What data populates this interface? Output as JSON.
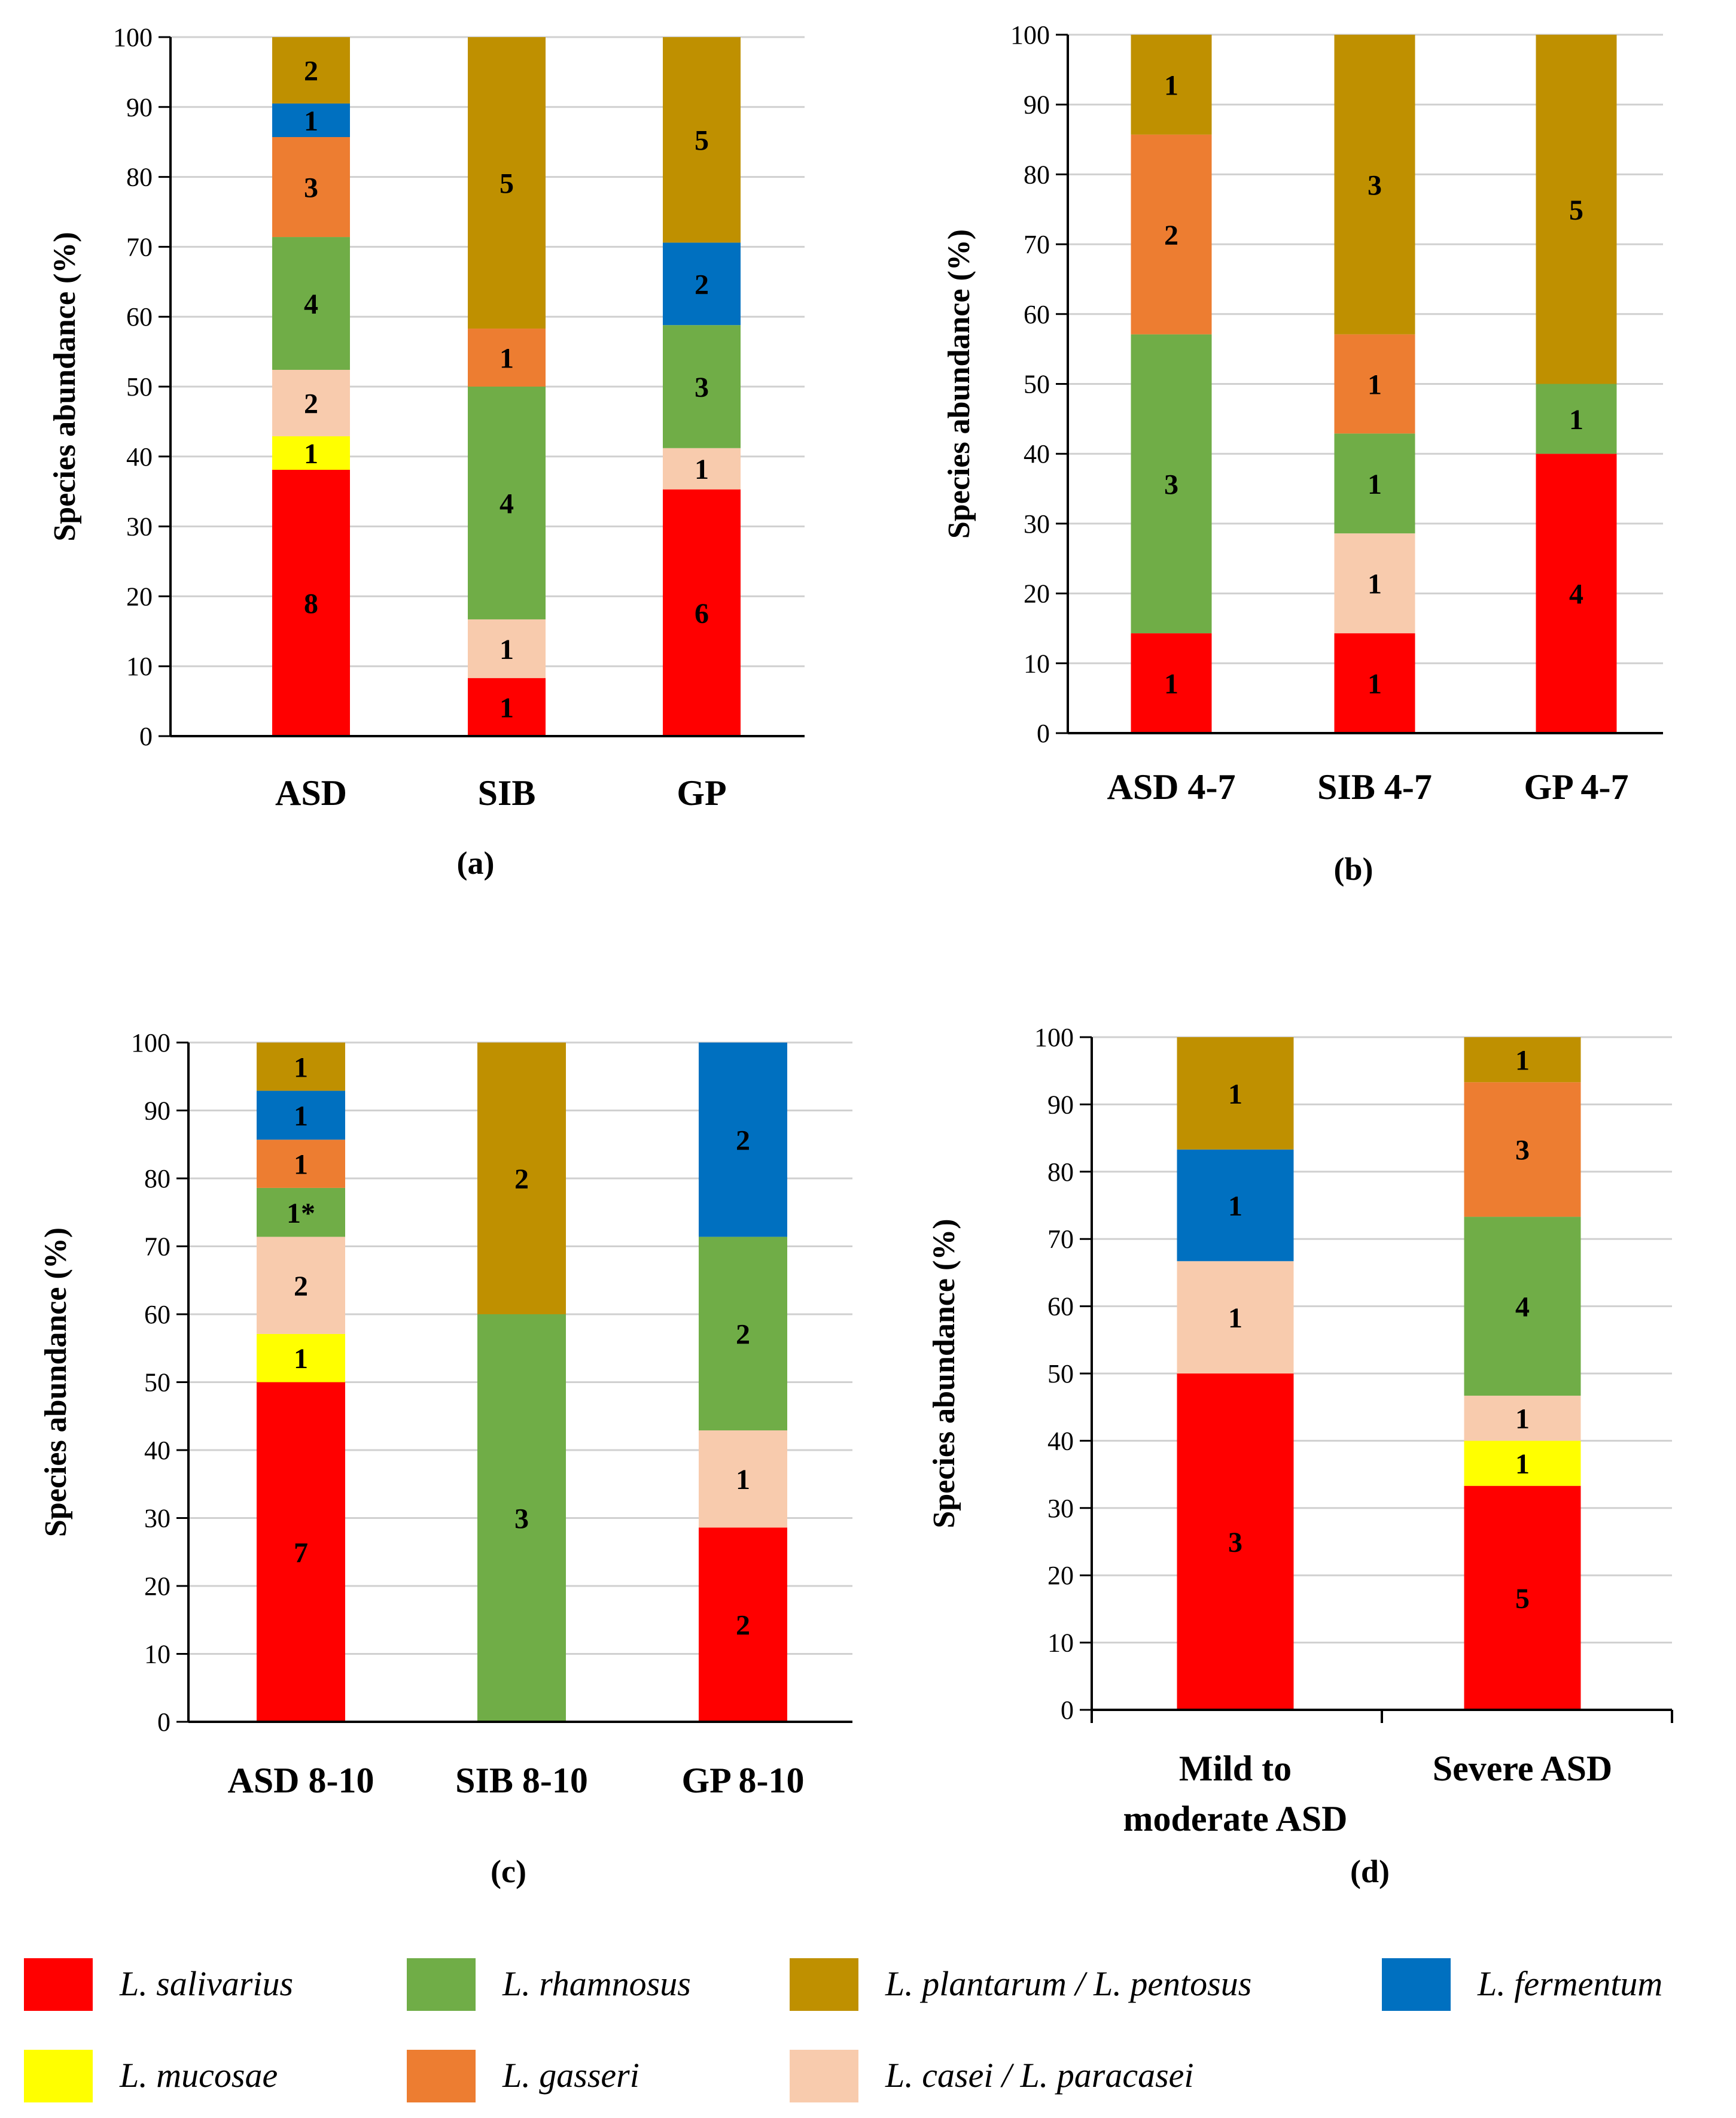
{
  "colors": {
    "L. salivarius": "#ff0000",
    "L. mucosae": "#ffff00",
    "L. casei / L. paracasei": "#f8cbad",
    "L. rhamnosus": "#70ad47",
    "L. gasseri": "#ed7d31",
    "L. fermentum": "#0070c0",
    "L. plantarum / L. pentosus": "#bf9000"
  },
  "legend": [
    "L. salivarius",
    "L. rhamnosus",
    "L. plantarum / L. pentosus",
    "L. fermentum",
    "L. mucosae",
    "L. gasseri",
    "L. casei / L. paracasei"
  ],
  "chart_data": [
    {
      "type": "bar",
      "stacked": true,
      "panel_label": "(a)",
      "ylabel": "Species abundance (%)",
      "ylim": [
        0,
        100
      ],
      "yticks": [
        0,
        10,
        20,
        30,
        40,
        50,
        60,
        70,
        80,
        90,
        100
      ],
      "categories": [
        "ASD",
        "SIB",
        "GP"
      ],
      "bars": [
        {
          "category": "ASD",
          "segments": [
            {
              "species": "L. salivarius",
              "start": 0,
              "end": 38.1,
              "label": "8"
            },
            {
              "species": "L. mucosae",
              "start": 38.1,
              "end": 42.9,
              "label": "1"
            },
            {
              "species": "L. casei / L. paracasei",
              "start": 42.9,
              "end": 52.4,
              "label": "2"
            },
            {
              "species": "L. rhamnosus",
              "start": 52.4,
              "end": 71.4,
              "label": "4"
            },
            {
              "species": "L. gasseri",
              "start": 71.4,
              "end": 85.7,
              "label": "3"
            },
            {
              "species": "L. fermentum",
              "start": 85.7,
              "end": 90.5,
              "label": "1"
            },
            {
              "species": "L. plantarum / L. pentosus",
              "start": 90.5,
              "end": 100,
              "label": "2"
            }
          ]
        },
        {
          "category": "SIB",
          "segments": [
            {
              "species": "L. salivarius",
              "start": 0,
              "end": 8.3,
              "label": "1"
            },
            {
              "species": "L. casei / L. paracasei",
              "start": 8.3,
              "end": 16.7,
              "label": "1"
            },
            {
              "species": "L. rhamnosus",
              "start": 16.7,
              "end": 50,
              "label": "4"
            },
            {
              "species": "L. gasseri",
              "start": 50,
              "end": 58.3,
              "label": "1"
            },
            {
              "species": "L. plantarum / L. pentosus",
              "start": 58.3,
              "end": 100,
              "label": "5"
            }
          ]
        },
        {
          "category": "GP",
          "segments": [
            {
              "species": "L. salivarius",
              "start": 0,
              "end": 35.3,
              "label": "6"
            },
            {
              "species": "L. casei / L. paracasei",
              "start": 35.3,
              "end": 41.2,
              "label": "1"
            },
            {
              "species": "L. rhamnosus",
              "start": 41.2,
              "end": 58.8,
              "label": "3"
            },
            {
              "species": "L. fermentum",
              "start": 58.8,
              "end": 70.6,
              "label": "2"
            },
            {
              "species": "L. plantarum / L. pentosus",
              "start": 70.6,
              "end": 100,
              "label": "5"
            }
          ]
        }
      ]
    },
    {
      "type": "bar",
      "stacked": true,
      "panel_label": "(b)",
      "ylabel": "Species abundance (%)",
      "ylim": [
        0,
        100
      ],
      "yticks": [
        0,
        10,
        20,
        30,
        40,
        50,
        60,
        70,
        80,
        90,
        100
      ],
      "categories": [
        "ASD 4-7",
        "SIB 4-7",
        "GP 4-7"
      ],
      "bars": [
        {
          "category": "ASD 4-7",
          "segments": [
            {
              "species": "L. salivarius",
              "start": 0,
              "end": 14.3,
              "label": "1"
            },
            {
              "species": "L. rhamnosus",
              "start": 14.3,
              "end": 57.1,
              "label": "3"
            },
            {
              "species": "L. gasseri",
              "start": 57.1,
              "end": 85.7,
              "label": "2"
            },
            {
              "species": "L. plantarum / L. pentosus",
              "start": 85.7,
              "end": 100,
              "label": "1"
            }
          ]
        },
        {
          "category": "SIB 4-7",
          "segments": [
            {
              "species": "L. salivarius",
              "start": 0,
              "end": 14.3,
              "label": "1"
            },
            {
              "species": "L. casei / L. paracasei",
              "start": 14.3,
              "end": 28.6,
              "label": "1"
            },
            {
              "species": "L. rhamnosus",
              "start": 28.6,
              "end": 42.9,
              "label": "1"
            },
            {
              "species": "L. gasseri",
              "start": 42.9,
              "end": 57.1,
              "label": "1"
            },
            {
              "species": "L. plantarum / L. pentosus",
              "start": 57.1,
              "end": 100,
              "label": "3"
            }
          ]
        },
        {
          "category": "GP 4-7",
          "segments": [
            {
              "species": "L. salivarius",
              "start": 0,
              "end": 40,
              "label": "4"
            },
            {
              "species": "L. rhamnosus",
              "start": 40,
              "end": 50,
              "label": "1"
            },
            {
              "species": "L. plantarum / L. pentosus",
              "start": 50,
              "end": 100,
              "label": "5"
            }
          ]
        }
      ]
    },
    {
      "type": "bar",
      "stacked": true,
      "panel_label": "(c)",
      "ylabel": "Species abundance (%)",
      "ylim": [
        0,
        100
      ],
      "yticks": [
        0,
        10,
        20,
        30,
        40,
        50,
        60,
        70,
        80,
        90,
        100
      ],
      "categories": [
        "ASD 8-10",
        "SIB 8-10",
        "GP 8-10"
      ],
      "bars": [
        {
          "category": "ASD 8-10",
          "segments": [
            {
              "species": "L. salivarius",
              "start": 0,
              "end": 50,
              "label": "7"
            },
            {
              "species": "L. mucosae",
              "start": 50,
              "end": 57.1,
              "label": "1"
            },
            {
              "species": "L. casei / L. paracasei",
              "start": 57.1,
              "end": 71.4,
              "label": "2"
            },
            {
              "species": "L. rhamnosus",
              "start": 71.4,
              "end": 78.6,
              "label": "1*"
            },
            {
              "species": "L. gasseri",
              "start": 78.6,
              "end": 85.7,
              "label": "1"
            },
            {
              "species": "L. fermentum",
              "start": 85.7,
              "end": 92.9,
              "label": "1"
            },
            {
              "species": "L. plantarum / L. pentosus",
              "start": 92.9,
              "end": 100,
              "label": "1"
            }
          ]
        },
        {
          "category": "SIB 8-10",
          "segments": [
            {
              "species": "L. rhamnosus",
              "start": 0,
              "end": 60,
              "label": "3"
            },
            {
              "species": "L. plantarum / L. pentosus",
              "start": 60,
              "end": 100,
              "label": "2"
            }
          ]
        },
        {
          "category": "GP 8-10",
          "segments": [
            {
              "species": "L. salivarius",
              "start": 0,
              "end": 28.6,
              "label": "2"
            },
            {
              "species": "L. casei / L. paracasei",
              "start": 28.6,
              "end": 42.9,
              "label": "1"
            },
            {
              "species": "L. rhamnosus",
              "start": 42.9,
              "end": 71.4,
              "label": "2"
            },
            {
              "species": "L. fermentum",
              "start": 71.4,
              "end": 100,
              "label": "2"
            }
          ]
        }
      ]
    },
    {
      "type": "bar",
      "stacked": true,
      "panel_label": "(d)",
      "ylabel": "Species abundance (%)",
      "ylim": [
        0,
        100
      ],
      "yticks": [
        0,
        10,
        20,
        30,
        40,
        50,
        60,
        70,
        80,
        90,
        100
      ],
      "categories": [
        "Mild to moderate ASD",
        "Severe ASD"
      ],
      "category_lines": [
        [
          "Mild to",
          "moderate ASD"
        ],
        [
          "Severe ASD"
        ]
      ],
      "bars": [
        {
          "category": "Mild to moderate ASD",
          "segments": [
            {
              "species": "L. salivarius",
              "start": 0,
              "end": 50,
              "label": "3"
            },
            {
              "species": "L. casei / L. paracasei",
              "start": 50,
              "end": 66.7,
              "label": "1"
            },
            {
              "species": "L. fermentum",
              "start": 66.7,
              "end": 83.3,
              "label": "1"
            },
            {
              "species": "L. plantarum / L. pentosus",
              "start": 83.3,
              "end": 100,
              "label": "1"
            }
          ]
        },
        {
          "category": "Severe ASD",
          "segments": [
            {
              "species": "L. salivarius",
              "start": 0,
              "end": 33.3,
              "label": "5"
            },
            {
              "species": "L. mucosae",
              "start": 33.3,
              "end": 40,
              "label": "1"
            },
            {
              "species": "L. casei / L. paracasei",
              "start": 40,
              "end": 46.7,
              "label": "1"
            },
            {
              "species": "L. rhamnosus",
              "start": 46.7,
              "end": 73.3,
              "label": "4"
            },
            {
              "species": "L. gasseri",
              "start": 73.3,
              "end": 93.3,
              "label": "3"
            },
            {
              "species": "L. plantarum / L. pentosus",
              "start": 93.3,
              "end": 100,
              "label": "1"
            }
          ]
        }
      ]
    }
  ]
}
